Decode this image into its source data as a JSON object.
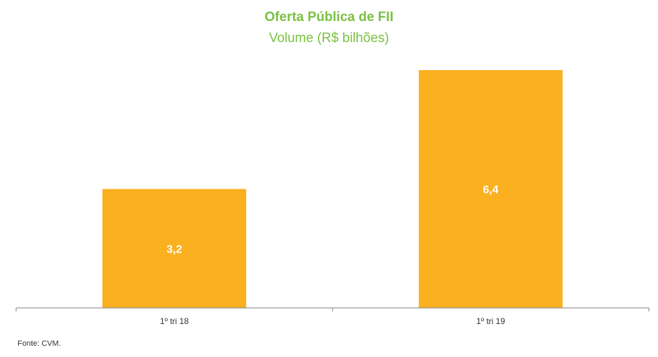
{
  "chart_data": {
    "type": "bar",
    "title": "Oferta Pública de FII",
    "subtitle": "Volume (R$ bilhões)",
    "categories": [
      "1º tri 18",
      "1º tri 19"
    ],
    "values": [
      3.2,
      6.4
    ],
    "value_labels": [
      "3,2",
      "6,4"
    ],
    "xlabel": "",
    "ylabel": "",
    "ylim": [
      0,
      6.4
    ],
    "grid": false,
    "legend": "none",
    "bar_color": "#fbb01f",
    "title_color": "#7ac143",
    "label_color": "#ffffff"
  },
  "source": "Fonte: CVM."
}
